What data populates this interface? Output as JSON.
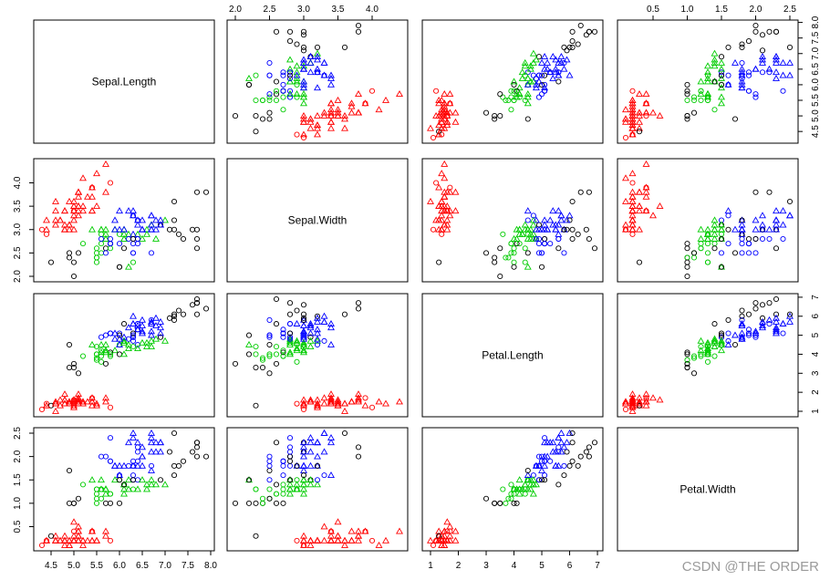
{
  "chart_data": {
    "type": "scatter",
    "variables": [
      "Sepal.Length",
      "Sepal.Width",
      "Petal.Length",
      "Petal.Width"
    ],
    "ranges": [
      [
        4.3,
        7.9
      ],
      [
        2.0,
        4.4
      ],
      [
        1.0,
        6.9
      ],
      [
        0.1,
        2.5
      ]
    ],
    "ticks": [
      [
        "4.5",
        "5.0",
        "5.5",
        "6.0",
        "6.5",
        "7.0",
        "7.5",
        "8.0"
      ],
      [
        "2.0",
        "2.5",
        "3.0",
        "3.5",
        "4.0"
      ],
      [
        "1",
        "2",
        "3",
        "4",
        "5",
        "6",
        "7"
      ],
      [
        "0.5",
        "1.0",
        "1.5",
        "2.0",
        "2.5"
      ]
    ],
    "colors": {
      "black": "#000000",
      "red": "#ff0000",
      "green": "#00cc00",
      "blue": "#0000ff"
    },
    "points": [
      [
        5.1,
        3.5,
        1.4,
        0.2,
        "red",
        "triangle"
      ],
      [
        4.9,
        3.0,
        1.4,
        0.2,
        "red",
        "triangle"
      ],
      [
        4.7,
        3.2,
        1.3,
        0.2,
        "red",
        "triangle"
      ],
      [
        4.6,
        3.1,
        1.5,
        0.2,
        "red",
        "triangle"
      ],
      [
        5.0,
        3.6,
        1.4,
        0.2,
        "red",
        "triangle"
      ],
      [
        5.4,
        3.9,
        1.7,
        0.4,
        "red",
        "circle"
      ],
      [
        4.6,
        3.4,
        1.4,
        0.3,
        "red",
        "triangle"
      ],
      [
        5.0,
        3.4,
        1.5,
        0.2,
        "red",
        "triangle"
      ],
      [
        4.4,
        2.9,
        1.4,
        0.2,
        "red",
        "circle"
      ],
      [
        4.9,
        3.1,
        1.5,
        0.1,
        "red",
        "triangle"
      ],
      [
        5.4,
        3.7,
        1.5,
        0.2,
        "red",
        "triangle"
      ],
      [
        4.8,
        3.4,
        1.6,
        0.2,
        "red",
        "triangle"
      ],
      [
        4.8,
        3.0,
        1.4,
        0.1,
        "red",
        "triangle"
      ],
      [
        4.3,
        3.0,
        1.1,
        0.1,
        "red",
        "circle"
      ],
      [
        5.8,
        4.0,
        1.2,
        0.2,
        "red",
        "circle"
      ],
      [
        5.7,
        4.4,
        1.5,
        0.4,
        "red",
        "triangle"
      ],
      [
        5.4,
        3.9,
        1.3,
        0.4,
        "red",
        "triangle"
      ],
      [
        5.1,
        3.5,
        1.4,
        0.3,
        "red",
        "triangle"
      ],
      [
        5.7,
        3.8,
        1.7,
        0.3,
        "red",
        "triangle"
      ],
      [
        5.1,
        3.8,
        1.5,
        0.3,
        "red",
        "triangle"
      ],
      [
        5.4,
        3.4,
        1.7,
        0.2,
        "red",
        "triangle"
      ],
      [
        5.1,
        3.7,
        1.5,
        0.4,
        "red",
        "triangle"
      ],
      [
        4.6,
        3.6,
        1.0,
        0.2,
        "red",
        "triangle"
      ],
      [
        5.1,
        3.3,
        1.7,
        0.5,
        "red",
        "triangle"
      ],
      [
        4.8,
        3.4,
        1.9,
        0.2,
        "red",
        "triangle"
      ],
      [
        5.0,
        3.0,
        1.6,
        0.2,
        "red",
        "triangle"
      ],
      [
        5.0,
        3.4,
        1.6,
        0.4,
        "red",
        "circle"
      ],
      [
        5.2,
        3.5,
        1.5,
        0.2,
        "red",
        "triangle"
      ],
      [
        5.2,
        3.4,
        1.4,
        0.2,
        "red",
        "triangle"
      ],
      [
        4.7,
        3.2,
        1.6,
        0.2,
        "red",
        "triangle"
      ],
      [
        4.8,
        3.1,
        1.6,
        0.2,
        "red",
        "triangle"
      ],
      [
        5.4,
        3.4,
        1.5,
        0.4,
        "red",
        "triangle"
      ],
      [
        5.2,
        4.1,
        1.5,
        0.1,
        "red",
        "triangle"
      ],
      [
        5.5,
        4.2,
        1.4,
        0.2,
        "red",
        "triangle"
      ],
      [
        4.9,
        3.1,
        1.5,
        0.2,
        "red",
        "triangle"
      ],
      [
        5.0,
        3.2,
        1.2,
        0.2,
        "red",
        "triangle"
      ],
      [
        5.5,
        3.5,
        1.3,
        0.2,
        "red",
        "triangle"
      ],
      [
        4.9,
        3.6,
        1.4,
        0.1,
        "red",
        "triangle"
      ],
      [
        4.4,
        3.0,
        1.3,
        0.2,
        "red",
        "triangle"
      ],
      [
        5.1,
        3.4,
        1.5,
        0.2,
        "red",
        "triangle"
      ],
      [
        5.0,
        3.5,
        1.3,
        0.3,
        "red",
        "triangle"
      ],
      [
        4.5,
        2.3,
        1.3,
        0.3,
        "black",
        "circle"
      ],
      [
        4.4,
        3.2,
        1.3,
        0.2,
        "red",
        "triangle"
      ],
      [
        5.0,
        3.5,
        1.6,
        0.6,
        "red",
        "triangle"
      ],
      [
        5.1,
        3.8,
        1.9,
        0.4,
        "red",
        "triangle"
      ],
      [
        4.8,
        3.0,
        1.4,
        0.3,
        "red",
        "triangle"
      ],
      [
        5.1,
        3.8,
        1.6,
        0.2,
        "red",
        "triangle"
      ],
      [
        4.6,
        3.2,
        1.4,
        0.2,
        "red",
        "triangle"
      ],
      [
        5.3,
        3.7,
        1.5,
        0.2,
        "red",
        "triangle"
      ],
      [
        5.0,
        3.3,
        1.4,
        0.2,
        "red",
        "triangle"
      ],
      [
        7.0,
        3.2,
        4.7,
        1.4,
        "green",
        "triangle"
      ],
      [
        6.4,
        3.2,
        4.5,
        1.5,
        "blue",
        "circle"
      ],
      [
        6.9,
        3.1,
        4.9,
        1.5,
        "black",
        "circle"
      ],
      [
        5.5,
        2.3,
        4.0,
        1.3,
        "green",
        "circle"
      ],
      [
        6.5,
        2.8,
        4.6,
        1.5,
        "green",
        "triangle"
      ],
      [
        5.7,
        2.8,
        4.5,
        1.3,
        "green",
        "triangle"
      ],
      [
        6.3,
        3.3,
        4.7,
        1.6,
        "blue",
        "circle"
      ],
      [
        4.9,
        2.4,
        3.3,
        1.0,
        "black",
        "circle"
      ],
      [
        6.6,
        2.9,
        4.6,
        1.3,
        "green",
        "triangle"
      ],
      [
        5.2,
        2.7,
        3.9,
        1.4,
        "green",
        "circle"
      ],
      [
        5.0,
        2.0,
        3.5,
        1.0,
        "black",
        "circle"
      ],
      [
        5.9,
        3.0,
        4.2,
        1.5,
        "green",
        "triangle"
      ],
      [
        6.0,
        2.2,
        4.0,
        1.0,
        "black",
        "circle"
      ],
      [
        6.1,
        2.9,
        4.7,
        1.4,
        "green",
        "triangle"
      ],
      [
        5.6,
        2.9,
        3.6,
        1.3,
        "green",
        "circle"
      ],
      [
        6.7,
        3.1,
        4.4,
        1.4,
        "green",
        "triangle"
      ],
      [
        5.6,
        3.0,
        4.5,
        1.5,
        "green",
        "triangle"
      ],
      [
        5.8,
        2.7,
        4.1,
        1.0,
        "black",
        "circle"
      ],
      [
        6.2,
        2.2,
        4.5,
        1.5,
        "green",
        "triangle"
      ],
      [
        5.6,
        2.5,
        3.9,
        1.1,
        "green",
        "circle"
      ],
      [
        5.9,
        3.2,
        4.8,
        1.8,
        "blue",
        "triangle"
      ],
      [
        6.1,
        2.8,
        4.0,
        1.3,
        "green",
        "triangle"
      ],
      [
        6.3,
        2.5,
        4.9,
        1.5,
        "blue",
        "circle"
      ],
      [
        6.1,
        2.8,
        4.7,
        1.2,
        "green",
        "triangle"
      ],
      [
        6.4,
        2.9,
        4.3,
        1.3,
        "green",
        "triangle"
      ],
      [
        6.6,
        3.0,
        4.4,
        1.4,
        "green",
        "triangle"
      ],
      [
        6.8,
        2.8,
        4.8,
        1.4,
        "green",
        "triangle"
      ],
      [
        6.7,
        3.0,
        5.0,
        1.7,
        "blue",
        "triangle"
      ],
      [
        6.0,
        2.9,
        4.5,
        1.5,
        "green",
        "circle"
      ],
      [
        5.7,
        2.6,
        3.5,
        1.0,
        "black",
        "circle"
      ],
      [
        5.5,
        2.4,
        3.8,
        1.1,
        "green",
        "circle"
      ],
      [
        5.5,
        2.4,
        3.7,
        1.0,
        "green",
        "circle"
      ],
      [
        5.8,
        2.7,
        3.9,
        1.2,
        "green",
        "circle"
      ],
      [
        6.0,
        2.7,
        5.1,
        1.6,
        "blue",
        "circle"
      ],
      [
        5.4,
        3.0,
        4.5,
        1.5,
        "green",
        "triangle"
      ],
      [
        6.0,
        3.4,
        4.5,
        1.6,
        "blue",
        "triangle"
      ],
      [
        6.7,
        3.1,
        4.7,
        1.5,
        "green",
        "triangle"
      ],
      [
        6.3,
        2.3,
        4.4,
        1.3,
        "green",
        "circle"
      ],
      [
        5.6,
        3.0,
        4.1,
        1.3,
        "green",
        "triangle"
      ],
      [
        5.5,
        2.5,
        4.0,
        1.3,
        "green",
        "circle"
      ],
      [
        5.5,
        2.6,
        4.4,
        1.2,
        "green",
        "circle"
      ],
      [
        6.1,
        3.0,
        4.6,
        1.4,
        "green",
        "triangle"
      ],
      [
        5.8,
        2.6,
        4.0,
        1.2,
        "green",
        "circle"
      ],
      [
        5.0,
        2.3,
        3.3,
        1.0,
        "black",
        "circle"
      ],
      [
        5.6,
        2.7,
        4.2,
        1.3,
        "green",
        "circle"
      ],
      [
        5.7,
        3.0,
        4.2,
        1.2,
        "green",
        "triangle"
      ],
      [
        5.7,
        2.9,
        4.2,
        1.3,
        "green",
        "triangle"
      ],
      [
        6.2,
        2.9,
        4.3,
        1.3,
        "green",
        "triangle"
      ],
      [
        5.1,
        2.5,
        3.0,
        1.1,
        "black",
        "circle"
      ],
      [
        5.7,
        2.8,
        4.1,
        1.3,
        "green",
        "triangle"
      ],
      [
        6.3,
        3.3,
        6.0,
        2.5,
        "blue",
        "triangle"
      ],
      [
        5.8,
        2.7,
        5.1,
        1.9,
        "blue",
        "circle"
      ],
      [
        7.1,
        3.0,
        5.9,
        2.1,
        "black",
        "circle"
      ],
      [
        6.3,
        2.9,
        5.6,
        1.8,
        "blue",
        "triangle"
      ],
      [
        6.5,
        3.0,
        5.8,
        2.2,
        "blue",
        "triangle"
      ],
      [
        7.6,
        3.0,
        6.6,
        2.1,
        "black",
        "circle"
      ],
      [
        4.9,
        2.5,
        4.5,
        1.7,
        "black",
        "circle"
      ],
      [
        7.3,
        2.9,
        6.3,
        1.8,
        "black",
        "circle"
      ],
      [
        6.7,
        2.5,
        5.8,
        1.8,
        "blue",
        "circle"
      ],
      [
        7.2,
        3.6,
        6.1,
        2.5,
        "black",
        "circle"
      ],
      [
        6.5,
        3.2,
        5.1,
        2.0,
        "blue",
        "triangle"
      ],
      [
        6.4,
        2.7,
        5.3,
        1.9,
        "blue",
        "circle"
      ],
      [
        6.8,
        3.0,
        5.5,
        2.1,
        "blue",
        "triangle"
      ],
      [
        5.7,
        2.5,
        5.0,
        2.0,
        "blue",
        "circle"
      ],
      [
        5.8,
        2.8,
        5.1,
        2.4,
        "blue",
        "circle"
      ],
      [
        6.4,
        3.2,
        5.3,
        2.3,
        "blue",
        "triangle"
      ],
      [
        6.5,
        3.0,
        5.5,
        1.8,
        "blue",
        "triangle"
      ],
      [
        7.7,
        3.8,
        6.7,
        2.2,
        "black",
        "circle"
      ],
      [
        7.7,
        2.6,
        6.9,
        2.3,
        "black",
        "circle"
      ],
      [
        6.0,
        2.2,
        5.0,
        1.5,
        "black",
        "circle"
      ],
      [
        6.9,
        3.2,
        5.7,
        2.3,
        "blue",
        "triangle"
      ],
      [
        5.6,
        2.8,
        4.9,
        2.0,
        "blue",
        "circle"
      ],
      [
        7.7,
        2.8,
        6.7,
        2.0,
        "black",
        "circle"
      ],
      [
        6.3,
        2.7,
        4.9,
        1.8,
        "blue",
        "circle"
      ],
      [
        6.7,
        3.3,
        5.7,
        2.1,
        "blue",
        "triangle"
      ],
      [
        7.2,
        3.2,
        6.0,
        1.8,
        "black",
        "circle"
      ],
      [
        6.2,
        2.8,
        4.8,
        1.8,
        "blue",
        "circle"
      ],
      [
        6.1,
        3.0,
        4.9,
        1.8,
        "blue",
        "triangle"
      ],
      [
        6.4,
        2.8,
        5.6,
        2.1,
        "blue",
        "circle"
      ],
      [
        7.2,
        3.0,
        5.8,
        1.6,
        "black",
        "circle"
      ],
      [
        7.4,
        2.8,
        6.1,
        1.9,
        "black",
        "circle"
      ],
      [
        7.9,
        3.8,
        6.4,
        2.0,
        "black",
        "circle"
      ],
      [
        6.4,
        2.8,
        5.6,
        2.2,
        "blue",
        "circle"
      ],
      [
        6.3,
        2.8,
        5.1,
        1.5,
        "black",
        "circle"
      ],
      [
        6.1,
        2.6,
        5.6,
        1.4,
        "black",
        "circle"
      ],
      [
        7.7,
        3.0,
        6.1,
        2.3,
        "black",
        "circle"
      ],
      [
        6.3,
        3.4,
        5.6,
        2.4,
        "blue",
        "triangle"
      ],
      [
        6.4,
        3.1,
        5.5,
        1.8,
        "blue",
        "triangle"
      ],
      [
        6.0,
        3.0,
        4.8,
        1.8,
        "blue",
        "triangle"
      ],
      [
        6.9,
        3.1,
        5.4,
        2.1,
        "blue",
        "triangle"
      ],
      [
        6.7,
        3.1,
        5.6,
        2.4,
        "blue",
        "triangle"
      ],
      [
        6.9,
        3.1,
        5.1,
        2.3,
        "blue",
        "triangle"
      ],
      [
        5.8,
        2.7,
        5.1,
        1.9,
        "blue",
        "circle"
      ],
      [
        6.8,
        3.2,
        5.9,
        2.3,
        "blue",
        "triangle"
      ],
      [
        6.7,
        3.3,
        5.7,
        2.5,
        "blue",
        "triangle"
      ],
      [
        6.7,
        3.0,
        5.2,
        2.3,
        "blue",
        "triangle"
      ],
      [
        6.3,
        2.5,
        5.0,
        1.9,
        "blue",
        "circle"
      ],
      [
        6.5,
        3.0,
        5.2,
        2.0,
        "blue",
        "triangle"
      ],
      [
        6.2,
        3.4,
        5.4,
        2.3,
        "blue",
        "triangle"
      ],
      [
        5.9,
        3.0,
        5.1,
        1.8,
        "blue",
        "triangle"
      ]
    ]
  },
  "watermark": "CSDN @THE ORDER"
}
